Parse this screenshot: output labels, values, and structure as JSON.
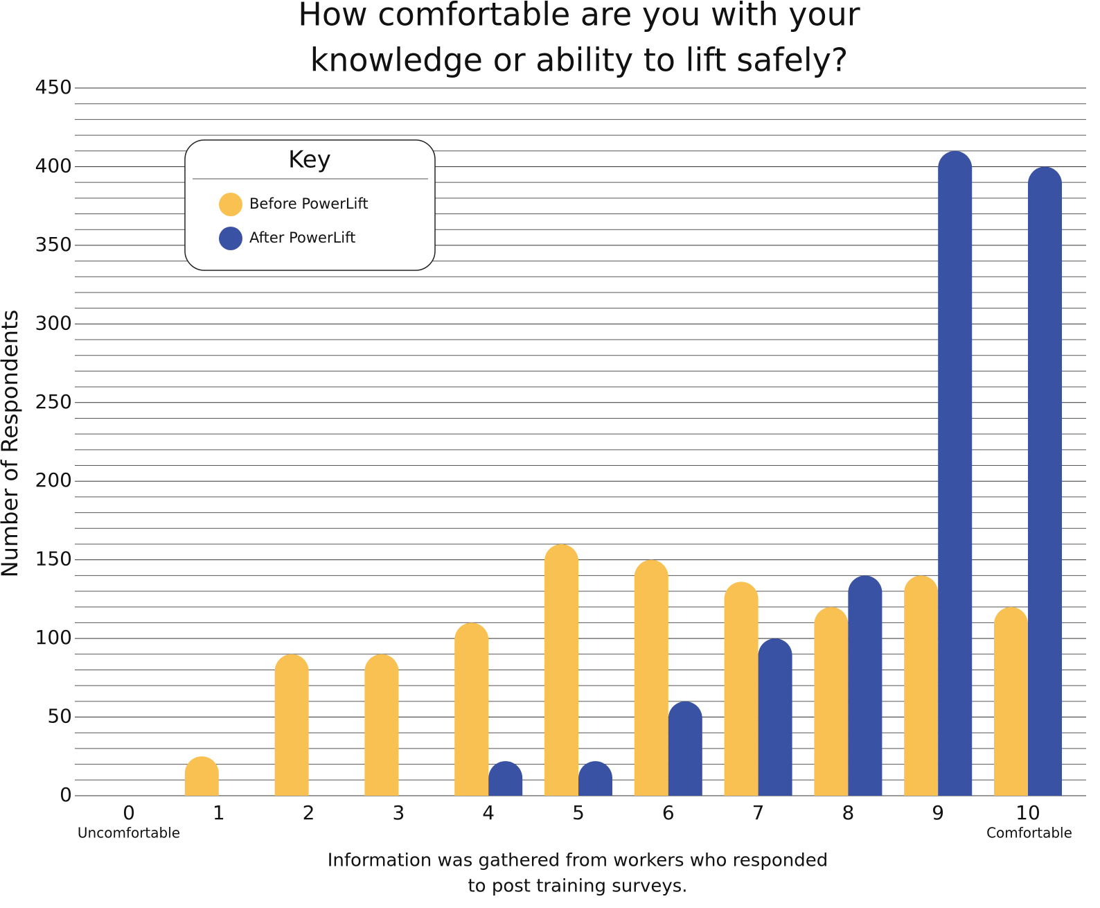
{
  "chart_data": {
    "type": "bar",
    "title": [
      "How comfortable are you with your",
      "knowledge or ability to lift safely?"
    ],
    "y_label": "Number of Respondents",
    "categories": [
      "0",
      "1",
      "2",
      "3",
      "4",
      "5",
      "6",
      "7",
      "8",
      "9",
      "10"
    ],
    "scale_labels": [
      "Uncomfortable",
      "Comfortable"
    ],
    "note": [
      "Information was gathered from workers who responded",
      "to post training surveys."
    ],
    "legend_title": "Key",
    "series": [
      {
        "name": "Before PowerLift",
        "color": "#f9c152",
        "values": [
          0,
          25,
          90,
          90,
          110,
          160,
          150,
          136,
          120,
          140,
          120
        ]
      },
      {
        "name": "After PowerLift",
        "color": "#3a52a3",
        "values": [
          0,
          0,
          0,
          0,
          22,
          22,
          60,
          100,
          140,
          410,
          400
        ]
      }
    ],
    "ylim": [
      0,
      450
    ],
    "yticks": [
      0,
      50,
      100,
      150,
      200,
      250,
      300,
      350,
      400,
      450
    ],
    "grid": true
  }
}
